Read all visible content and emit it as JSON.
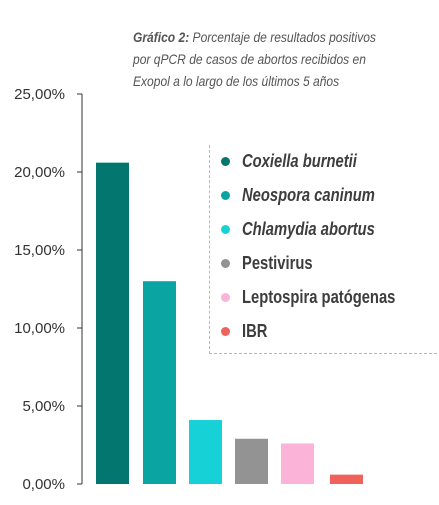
{
  "title": {
    "prefix": "Gráfico 2:",
    "line1": "Porcentaje de resultados positivos",
    "line2": "por qPCR de casos de abortos recibidos en",
    "line3": "Exopol a lo largo de los últimos 5 años"
  },
  "chart_data": {
    "type": "bar",
    "categories": [
      "Coxiella burnetii",
      "Neospora caninum",
      "Chlamydia abortus",
      "Pestivirus",
      "Leptospira patógenas",
      "IBR"
    ],
    "values": [
      20.6,
      13.0,
      4.1,
      2.9,
      2.6,
      0.6
    ],
    "ylim": [
      0,
      25
    ],
    "yticks": [
      0,
      5,
      10,
      15,
      20,
      25
    ],
    "ytick_labels": [
      "0,00%",
      "5,00%",
      "10,00%",
      "15,00%",
      "20,00%",
      "25,00%"
    ],
    "colors": [
      "#03766f",
      "#0aa5a2",
      "#16d1d6",
      "#939393",
      "#fbb3d7",
      "#f0615c"
    ],
    "legend_placement": "top-right",
    "grid": false
  },
  "legend": [
    {
      "label": "Coxiella burnetii",
      "italic": true,
      "color": "#03766f"
    },
    {
      "label": "Neospora caninum",
      "italic": true,
      "color": "#0aa5a2"
    },
    {
      "label": "Chlamydia abortus",
      "italic": true,
      "color": "#16d1d6"
    },
    {
      "label": "Pestivirus",
      "italic": false,
      "color": "#939393"
    },
    {
      "label": "Leptospira patógenas",
      "italic": false,
      "color": "#fbb3d7"
    },
    {
      "label": "IBR",
      "italic": false,
      "color": "#f0615c"
    }
  ]
}
